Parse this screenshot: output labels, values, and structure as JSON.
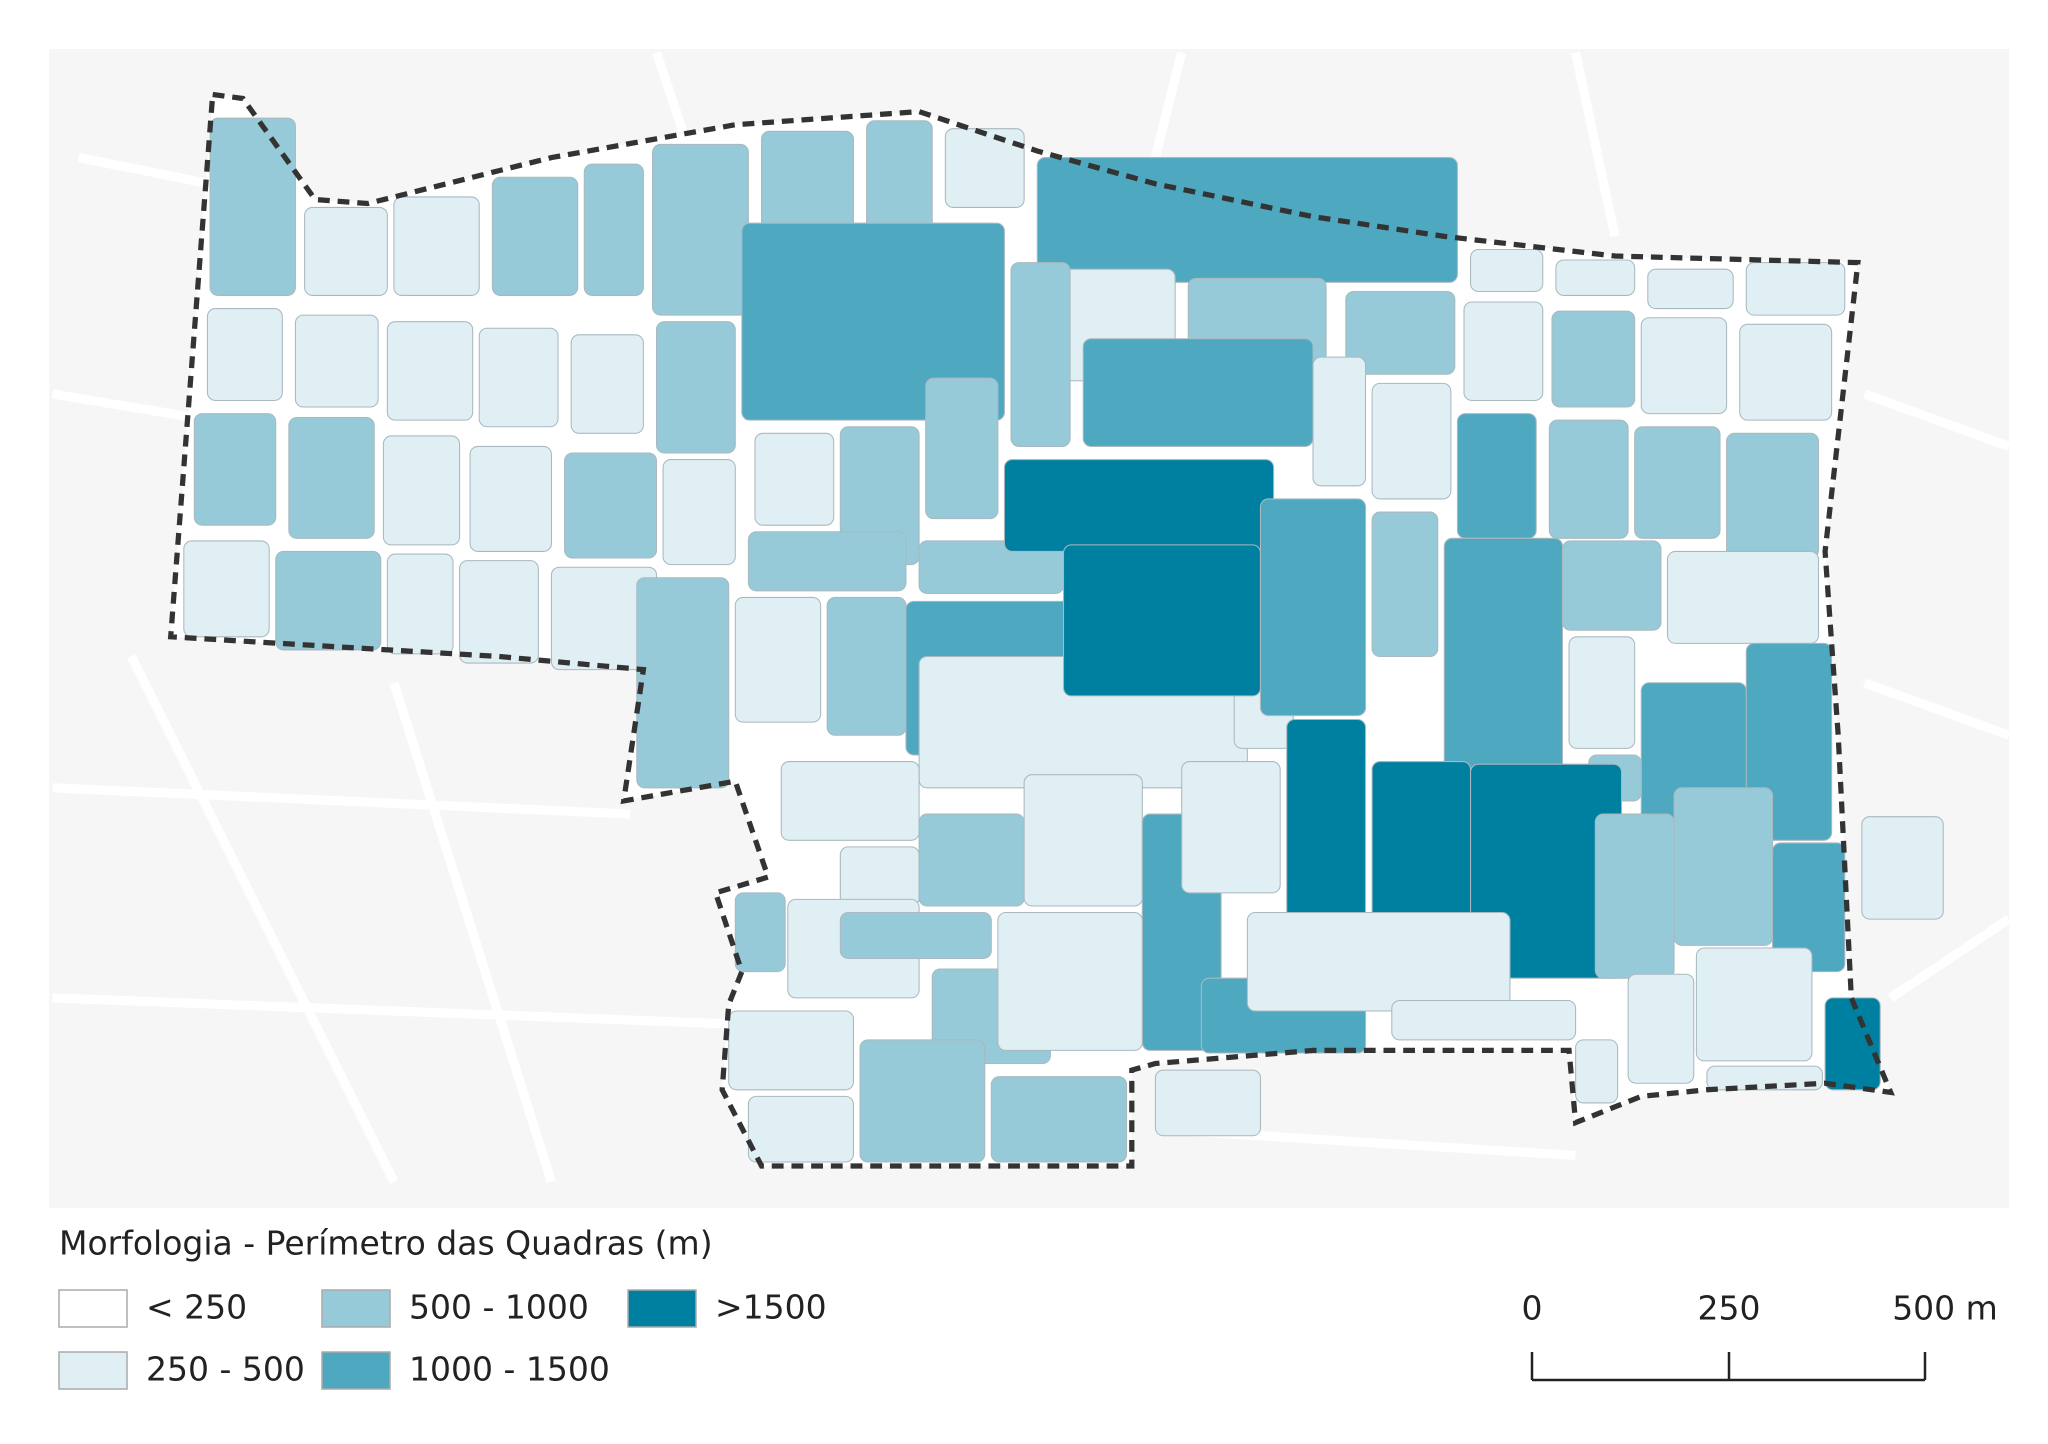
{
  "legend": {
    "title": "Morfologia - Perímetro das Quadras (m)",
    "items": [
      {
        "label": "< 250",
        "color": "#ffffff"
      },
      {
        "label": "250 - 500",
        "color": "#e0eff4"
      },
      {
        "label": "500 - 1000",
        "color": "#96cad8"
      },
      {
        "label": "1000 - 1500",
        "color": "#4ea8c0"
      },
      {
        "label": ">1500",
        "color": "#0080a1"
      }
    ]
  },
  "scale_bar": {
    "labels": [
      "0",
      "250",
      "500 m"
    ]
  }
}
